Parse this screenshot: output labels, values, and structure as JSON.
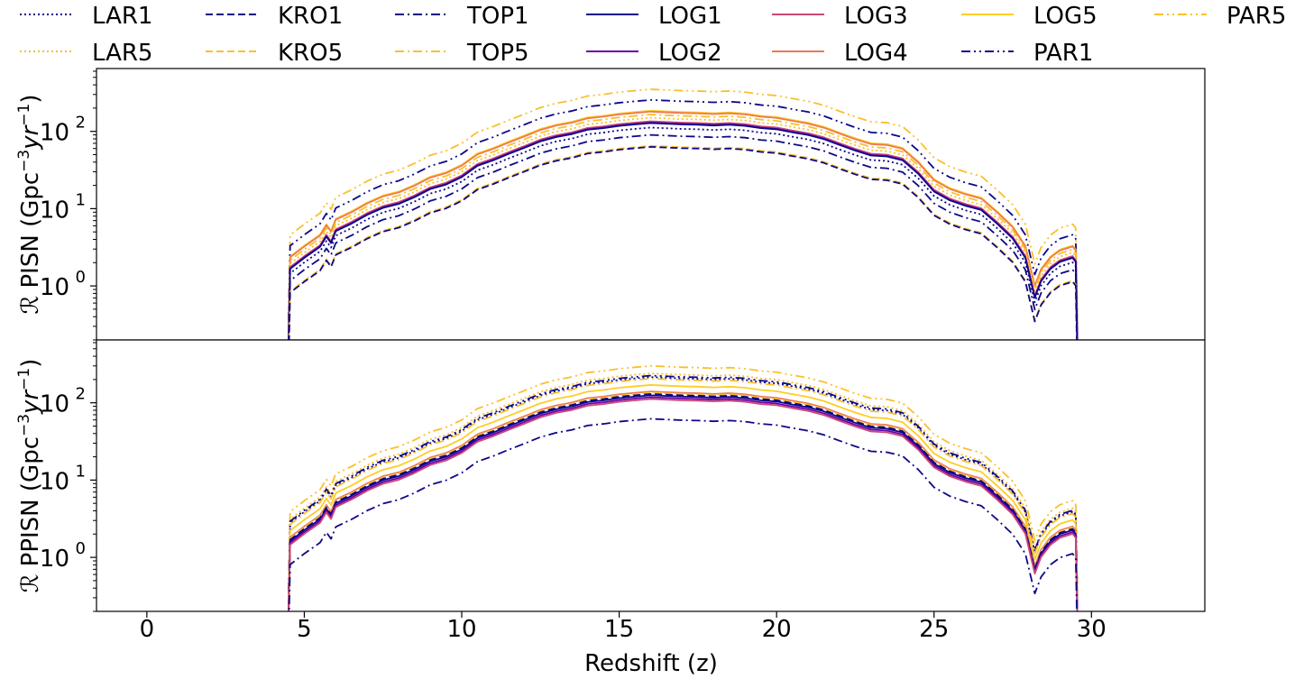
{
  "chart_data": {
    "type": "line",
    "xlabel": "Redshift (z)",
    "xlim": [
      -1.6,
      33.6
    ],
    "xticks": [
      0,
      5,
      10,
      15,
      20,
      25,
      30
    ],
    "yscale": "log",
    "ylim": [
      0.2,
      650
    ],
    "yticks": [
      1,
      10,
      100
    ],
    "ytick_labels": [
      {
        "base": "10",
        "exp": "0"
      },
      {
        "base": "10",
        "exp": "1"
      },
      {
        "base": "10",
        "exp": "2"
      }
    ],
    "legend": {
      "placement": "top",
      "ncol": 7,
      "entries": [
        {
          "name": "LAR1",
          "color": "#0d0887",
          "style": "dotted"
        },
        {
          "name": "LAR5",
          "color": "#fcbf2a",
          "style": "dotted"
        },
        {
          "name": "KRO1",
          "color": "#0d0887",
          "style": "dashed"
        },
        {
          "name": "KRO5",
          "color": "#fcbf2a",
          "style": "dashed"
        },
        {
          "name": "TOP1",
          "color": "#0d0887",
          "style": "dashdot"
        },
        {
          "name": "TOP5",
          "color": "#fcbf2a",
          "style": "dashdot"
        },
        {
          "name": "LOG1",
          "color": "#0d0887",
          "style": "solid"
        },
        {
          "name": "LOG2",
          "color": "#6a00a8",
          "style": "solid"
        },
        {
          "name": "LOG3",
          "color": "#cc4778",
          "style": "solid"
        },
        {
          "name": "LOG4",
          "color": "#ed7953",
          "style": "solid"
        },
        {
          "name": "LOG5",
          "color": "#fcce25",
          "style": "solid"
        },
        {
          "name": "PAR1",
          "color": "#0d0887",
          "style": "dashdotdot"
        },
        {
          "name": "PAR5",
          "color": "#fcbf2a",
          "style": "dashdotdot"
        }
      ]
    },
    "panels": [
      {
        "ylabel_prefix": "ℛ",
        "ylabel_text": "PISN (Gpc",
        "ylabel_exp": "−3",
        "ylabel_mid": "yr",
        "ylabel_exp2": "−1",
        "ylabel_close": ")",
        "series": [
          {
            "name": "PAR5",
            "peak": 350
          },
          {
            "name": "PAR1",
            "peak": 255
          },
          {
            "name": "LOG5",
            "peak": 185
          },
          {
            "name": "LOG4",
            "peak": 180
          },
          {
            "name": "TOP5",
            "peak": 165
          },
          {
            "name": "LAR5",
            "peak": 150
          },
          {
            "name": "LOG3",
            "peak": 135
          },
          {
            "name": "LOG2",
            "peak": 130
          },
          {
            "name": "LOG1",
            "peak": 128
          },
          {
            "name": "LAR1",
            "peak": 112
          },
          {
            "name": "TOP1",
            "peak": 90
          },
          {
            "name": "KRO5",
            "peak": 65
          },
          {
            "name": "KRO1",
            "peak": 63
          }
        ]
      },
      {
        "ylabel_prefix": "ℛ",
        "ylabel_text": "PPISN (Gpc",
        "ylabel_exp": "−3",
        "ylabel_mid": "yr",
        "ylabel_exp2": "−1",
        "ylabel_close": ")",
        "series": [
          {
            "name": "PAR5",
            "peak": 300
          },
          {
            "name": "LAR5",
            "peak": 240
          },
          {
            "name": "PAR1",
            "peak": 225
          },
          {
            "name": "LAR1",
            "peak": 215
          },
          {
            "name": "TOP5",
            "peak": 205
          },
          {
            "name": "LOG5",
            "peak": 170
          },
          {
            "name": "LOG4",
            "peak": 140
          },
          {
            "name": "KRO5",
            "peak": 135
          },
          {
            "name": "KRO1",
            "peak": 130
          },
          {
            "name": "LOG1",
            "peak": 125
          },
          {
            "name": "LOG2",
            "peak": 118
          },
          {
            "name": "LOG3",
            "peak": 112
          },
          {
            "name": "TOP1",
            "peak": 62
          }
        ]
      }
    ],
    "shape": {
      "z": [
        4.5,
        4.55,
        5.0,
        5.5,
        5.7,
        5.85,
        6.0,
        6.5,
        7.0,
        7.5,
        8.0,
        8.5,
        9.0,
        9.5,
        10.0,
        10.5,
        11.0,
        11.5,
        12.0,
        12.5,
        13.0,
        13.5,
        14.0,
        14.5,
        15.0,
        15.5,
        16.0,
        16.5,
        17.0,
        17.5,
        18.0,
        18.5,
        19.0,
        19.5,
        20.0,
        20.5,
        21.0,
        21.5,
        22.0,
        22.5,
        23.0,
        23.5,
        24.0,
        24.5,
        25.0,
        25.5,
        26.0,
        26.5,
        27.0,
        27.5,
        27.9,
        28.2,
        28.4,
        28.7,
        29.0,
        29.4,
        29.5,
        29.55
      ],
      "rel": [
        0.0015,
        0.013,
        0.018,
        0.025,
        0.034,
        0.028,
        0.04,
        0.05,
        0.065,
        0.08,
        0.09,
        0.11,
        0.14,
        0.16,
        0.2,
        0.28,
        0.33,
        0.4,
        0.48,
        0.58,
        0.66,
        0.72,
        0.82,
        0.86,
        0.92,
        0.96,
        1.0,
        0.98,
        0.96,
        0.95,
        0.93,
        0.95,
        0.92,
        0.86,
        0.83,
        0.76,
        0.7,
        0.62,
        0.52,
        0.44,
        0.38,
        0.37,
        0.33,
        0.22,
        0.13,
        0.1,
        0.085,
        0.075,
        0.05,
        0.032,
        0.018,
        0.0055,
        0.009,
        0.013,
        0.016,
        0.018,
        0.016,
        0.0015
      ]
    }
  }
}
